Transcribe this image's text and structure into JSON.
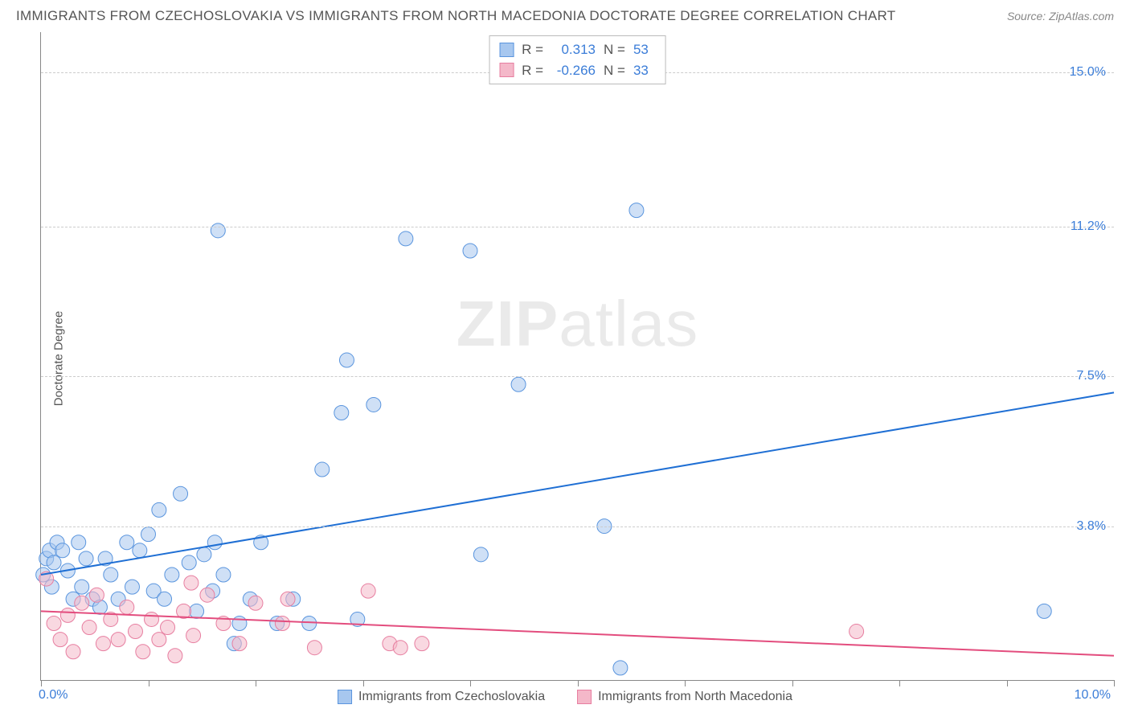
{
  "header": {
    "title": "IMMIGRANTS FROM CZECHOSLOVAKIA VS IMMIGRANTS FROM NORTH MACEDONIA DOCTORATE DEGREE CORRELATION CHART",
    "source_prefix": "Source: ",
    "source_name": "ZipAtlas.com"
  },
  "chart": {
    "type": "scatter",
    "ylabel": "Doctorate Degree",
    "xlim": [
      0,
      10
    ],
    "ylim": [
      0,
      16
    ],
    "x_ticks": [
      0,
      1,
      2,
      3,
      4,
      5,
      6,
      7,
      8,
      9,
      10
    ],
    "x_min_label": "0.0%",
    "x_max_label": "10.0%",
    "y_gridlines": [
      3.8,
      7.5,
      11.2,
      15.0
    ],
    "y_grid_labels": [
      "3.8%",
      "7.5%",
      "11.2%",
      "15.0%"
    ],
    "grid_color": "#cccccc",
    "axis_color": "#888888",
    "background_color": "#ffffff",
    "marker_radius": 9,
    "marker_opacity": 0.55,
    "line_width": 2,
    "watermark": "ZIPatlas",
    "series": [
      {
        "key": "cz",
        "label": "Immigrants from Czechoslovakia",
        "color_fill": "#a7c7ef",
        "color_stroke": "#5a95de",
        "line_color": "#1f6fd4",
        "r_label": "R =",
        "r_value": "0.313",
        "n_label": "N =",
        "n_value": "53",
        "trend": {
          "x1": 0,
          "y1": 2.6,
          "x2": 10,
          "y2": 7.1
        },
        "points": [
          [
            0.02,
            2.6
          ],
          [
            0.05,
            3.0
          ],
          [
            0.08,
            3.2
          ],
          [
            0.1,
            2.3
          ],
          [
            0.12,
            2.9
          ],
          [
            0.15,
            3.4
          ],
          [
            0.2,
            3.2
          ],
          [
            0.25,
            2.7
          ],
          [
            0.3,
            2.0
          ],
          [
            0.35,
            3.4
          ],
          [
            0.38,
            2.3
          ],
          [
            0.42,
            3.0
          ],
          [
            0.48,
            2.0
          ],
          [
            0.55,
            1.8
          ],
          [
            0.6,
            3.0
          ],
          [
            0.65,
            2.6
          ],
          [
            0.72,
            2.0
          ],
          [
            0.8,
            3.4
          ],
          [
            0.85,
            2.3
          ],
          [
            0.92,
            3.2
          ],
          [
            1.0,
            3.6
          ],
          [
            1.05,
            2.2
          ],
          [
            1.1,
            4.2
          ],
          [
            1.15,
            2.0
          ],
          [
            1.22,
            2.6
          ],
          [
            1.3,
            4.6
          ],
          [
            1.38,
            2.9
          ],
          [
            1.45,
            1.7
          ],
          [
            1.52,
            3.1
          ],
          [
            1.6,
            2.2
          ],
          [
            1.62,
            3.4
          ],
          [
            1.7,
            2.6
          ],
          [
            1.8,
            0.9
          ],
          [
            1.85,
            1.4
          ],
          [
            1.95,
            2.0
          ],
          [
            2.05,
            3.4
          ],
          [
            2.2,
            1.4
          ],
          [
            2.35,
            2.0
          ],
          [
            2.5,
            1.4
          ],
          [
            2.62,
            5.2
          ],
          [
            2.8,
            6.6
          ],
          [
            2.85,
            7.9
          ],
          [
            2.95,
            1.5
          ],
          [
            3.1,
            6.8
          ],
          [
            3.4,
            10.9
          ],
          [
            1.65,
            11.1
          ],
          [
            4.0,
            10.6
          ],
          [
            4.45,
            7.3
          ],
          [
            4.1,
            3.1
          ],
          [
            5.25,
            3.8
          ],
          [
            5.4,
            0.3
          ],
          [
            5.55,
            11.6
          ],
          [
            9.35,
            1.7
          ]
        ]
      },
      {
        "key": "mk",
        "label": "Immigrants from North Macedonia",
        "color_fill": "#f4b8c9",
        "color_stroke": "#e77ea0",
        "line_color": "#e34d7e",
        "r_label": "R =",
        "r_value": "-0.266",
        "n_label": "N =",
        "n_value": "33",
        "trend": {
          "x1": 0,
          "y1": 1.7,
          "x2": 10,
          "y2": 0.6
        },
        "points": [
          [
            0.05,
            2.5
          ],
          [
            0.12,
            1.4
          ],
          [
            0.18,
            1.0
          ],
          [
            0.25,
            1.6
          ],
          [
            0.3,
            0.7
          ],
          [
            0.38,
            1.9
          ],
          [
            0.45,
            1.3
          ],
          [
            0.52,
            2.1
          ],
          [
            0.58,
            0.9
          ],
          [
            0.65,
            1.5
          ],
          [
            0.72,
            1.0
          ],
          [
            0.8,
            1.8
          ],
          [
            0.88,
            1.2
          ],
          [
            0.95,
            0.7
          ],
          [
            1.03,
            1.5
          ],
          [
            1.1,
            1.0
          ],
          [
            1.18,
            1.3
          ],
          [
            1.25,
            0.6
          ],
          [
            1.33,
            1.7
          ],
          [
            1.42,
            1.1
          ],
          [
            1.55,
            2.1
          ],
          [
            1.4,
            2.4
          ],
          [
            1.7,
            1.4
          ],
          [
            1.85,
            0.9
          ],
          [
            2.0,
            1.9
          ],
          [
            2.25,
            1.4
          ],
          [
            2.3,
            2.0
          ],
          [
            2.55,
            0.8
          ],
          [
            3.05,
            2.2
          ],
          [
            3.25,
            0.9
          ],
          [
            3.35,
            0.8
          ],
          [
            3.55,
            0.9
          ],
          [
            7.6,
            1.2
          ]
        ]
      }
    ]
  },
  "legend": {
    "bottom": [
      {
        "label_key": "0",
        "color_fill": "#a7c7ef",
        "color_stroke": "#5a95de"
      },
      {
        "label_key": "1",
        "color_fill": "#f4b8c9",
        "color_stroke": "#e77ea0"
      }
    ]
  }
}
